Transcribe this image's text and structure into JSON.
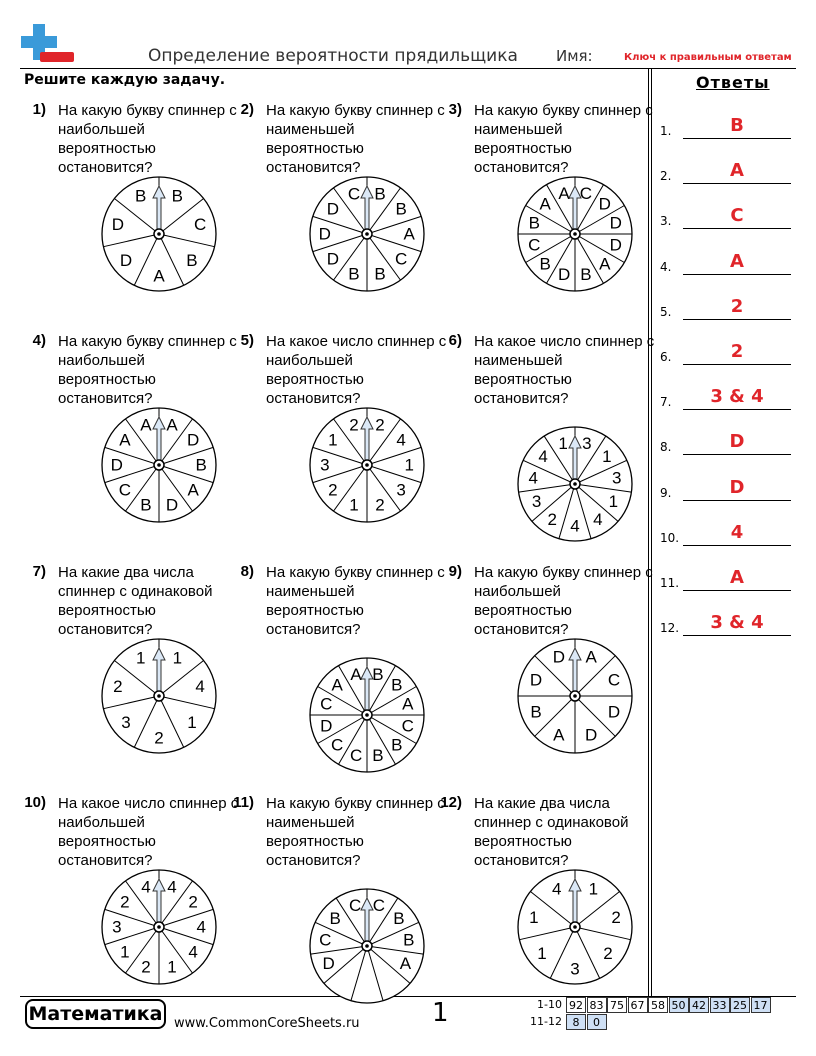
{
  "header": {
    "title": "Определение вероятности прядильщика",
    "name_label": "Имя:",
    "answer_key": "Ключ к правильным ответам"
  },
  "instructions": "Решите каждую задачу.",
  "answers_title": "Ответы",
  "problems": [
    {
      "number": "1)",
      "question": "На какую букву спиннер с наибольшей вероятностью остановится?",
      "sections": [
        "B",
        "C",
        "B",
        "A",
        "D",
        "D",
        "B"
      ]
    },
    {
      "number": "2)",
      "question": "На какую букву спиннер с наименьшей вероятностью остановится?",
      "sections": [
        "B",
        "B",
        "A",
        "C",
        "B",
        "B",
        "D",
        "D",
        "D",
        "C"
      ]
    },
    {
      "number": "3)",
      "question": "На какую букву спиннер с наименьшей вероятностью остановится?",
      "sections": [
        "C",
        "D",
        "D",
        "D",
        "A",
        "B",
        "D",
        "B",
        "C",
        "B",
        "A",
        "A"
      ]
    },
    {
      "number": "4)",
      "question": "На какую букву спиннер с наибольшей вероятностью остановится?",
      "sections": [
        "A",
        "D",
        "B",
        "A",
        "D",
        "B",
        "C",
        "D",
        "A",
        "A"
      ]
    },
    {
      "number": "5)",
      "question": "На какое число спиннер с наибольшей вероятностью остановится?",
      "sections": [
        "2",
        "4",
        "1",
        "3",
        "2",
        "1",
        "2",
        "3",
        "1",
        "2"
      ]
    },
    {
      "number": "6)",
      "question": "На какое число спиннер с наименьшей вероятностью остановится?",
      "sections": [
        "3",
        "1",
        "3",
        "1",
        "4",
        "4",
        "2",
        "3",
        "4",
        "4",
        "1"
      ]
    },
    {
      "number": "7)",
      "question": "На какие два числа спиннер с одинаковой вероятностью остановится?",
      "sections": [
        "1",
        "4",
        "1",
        "2",
        "3",
        "2",
        "1"
      ]
    },
    {
      "number": "8)",
      "question": "На какую букву спиннер с наименьшей вероятностью остановится?",
      "sections": [
        "B",
        "B",
        "A",
        "C",
        "B",
        "B",
        "C",
        "C",
        "D",
        "C",
        "A",
        "A"
      ]
    },
    {
      "number": "9)",
      "question": "На какую букву спиннер с наибольшей вероятностью остановится?",
      "sections": [
        "A",
        "C",
        "D",
        "D",
        "A",
        "B",
        "D",
        "D"
      ]
    },
    {
      "number": "10)",
      "question": "На какое число спиннер с наибольшей вероятностью остановится?",
      "sections": [
        "4",
        "2",
        "4",
        "4",
        "1",
        "2",
        "1",
        "3",
        "2",
        "4"
      ]
    },
    {
      "number": "11)",
      "question": "На какую букву спиннер с наименьшей вероятностью остановится?",
      "sections": [
        "C",
        "B",
        "B",
        "A",
        null,
        null,
        null,
        "D",
        "C",
        "B",
        "C"
      ]
    },
    {
      "number": "12)",
      "question": "На какие два числа спиннер с одинаковой вероятностью остановится?",
      "sections": [
        "1",
        "2",
        "2",
        "3",
        "1",
        "1",
        "4"
      ]
    }
  ],
  "answers": [
    {
      "number": "1.",
      "answer": "B"
    },
    {
      "number": "2.",
      "answer": "A"
    },
    {
      "number": "3.",
      "answer": "C"
    },
    {
      "number": "4.",
      "answer": "A"
    },
    {
      "number": "5.",
      "answer": "2"
    },
    {
      "number": "6.",
      "answer": "2"
    },
    {
      "number": "7.",
      "answer": "3 & 4"
    },
    {
      "number": "8.",
      "answer": "D"
    },
    {
      "number": "9.",
      "answer": "D"
    },
    {
      "number": "10.",
      "answer": "4"
    },
    {
      "number": "11.",
      "answer": "A"
    },
    {
      "number": "12.",
      "answer": "3 & 4"
    }
  ],
  "footer": {
    "brand": "Математика",
    "url": "www.CommonCoreSheets.ru",
    "page": "1",
    "scores": [
      {
        "label": "1-10",
        "cells": [
          "92",
          "83",
          "75",
          "67",
          "58",
          "50",
          "42",
          "33",
          "25",
          "17"
        ]
      },
      {
        "label": "11-12",
        "cells": [
          "8",
          "0"
        ]
      }
    ]
  }
}
